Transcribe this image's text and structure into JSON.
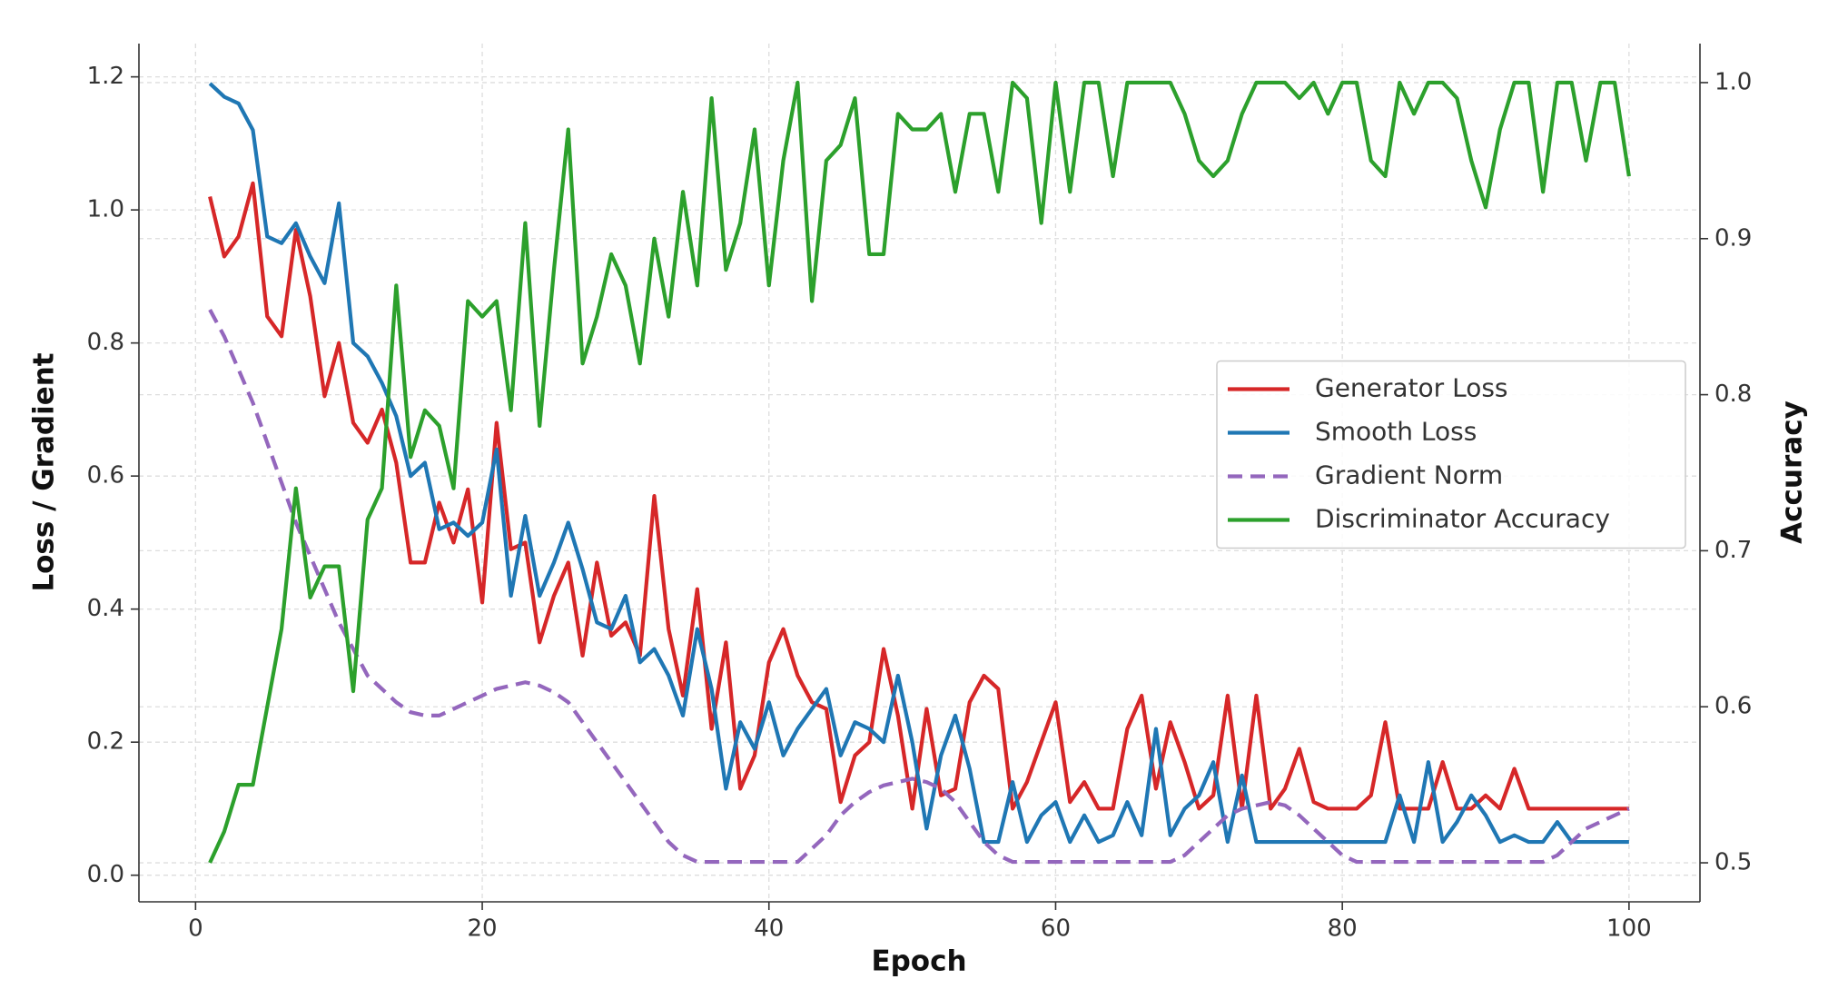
{
  "chart_data": {
    "type": "line",
    "xlabel": "Epoch",
    "ylabel": "Loss / Gradient",
    "y2label": "Accuracy",
    "x": [
      1,
      2,
      3,
      4,
      5,
      6,
      7,
      8,
      9,
      10,
      11,
      12,
      13,
      14,
      15,
      16,
      17,
      18,
      19,
      20,
      21,
      22,
      23,
      24,
      25,
      26,
      27,
      28,
      29,
      30,
      31,
      32,
      33,
      34,
      35,
      36,
      37,
      38,
      39,
      40,
      41,
      42,
      43,
      44,
      45,
      46,
      47,
      48,
      49,
      50,
      51,
      52,
      53,
      54,
      55,
      56,
      57,
      58,
      59,
      60,
      61,
      62,
      63,
      64,
      65,
      66,
      67,
      68,
      69,
      70,
      71,
      72,
      73,
      74,
      75,
      76,
      77,
      78,
      79,
      80,
      81,
      82,
      83,
      84,
      85,
      86,
      87,
      88,
      89,
      90,
      91,
      92,
      93,
      94,
      95,
      96,
      97,
      98,
      99,
      100
    ],
    "series": [
      {
        "name": "Generator Loss",
        "color": "#d62728",
        "linestyle": "solid",
        "axis": "y",
        "values": [
          1.02,
          0.93,
          0.96,
          1.04,
          0.84,
          0.81,
          0.97,
          0.87,
          0.72,
          0.8,
          0.68,
          0.65,
          0.7,
          0.62,
          0.47,
          0.47,
          0.56,
          0.5,
          0.58,
          0.41,
          0.68,
          0.49,
          0.5,
          0.35,
          0.42,
          0.47,
          0.33,
          0.47,
          0.36,
          0.38,
          0.33,
          0.57,
          0.37,
          0.27,
          0.43,
          0.22,
          0.35,
          0.13,
          0.18,
          0.32,
          0.37,
          0.3,
          0.26,
          0.25,
          0.11,
          0.18,
          0.2,
          0.34,
          0.24,
          0.1,
          0.25,
          0.12,
          0.13,
          0.26,
          0.3,
          0.28,
          0.1,
          0.14,
          0.2,
          0.26,
          0.11,
          0.14,
          0.1,
          0.1,
          0.22,
          0.27,
          0.13,
          0.23,
          0.17,
          0.1,
          0.12,
          0.27,
          0.1,
          0.27,
          0.1,
          0.13,
          0.19,
          0.11,
          0.1,
          0.1,
          0.1,
          0.12,
          0.23,
          0.1,
          0.1,
          0.1,
          0.17,
          0.1,
          0.1,
          0.12,
          0.1,
          0.16,
          0.1,
          0.1,
          0.1,
          0.1,
          0.1,
          0.1,
          0.1,
          0.1
        ]
      },
      {
        "name": "Smooth Loss",
        "color": "#1f77b4",
        "linestyle": "solid",
        "axis": "y",
        "values": [
          1.19,
          1.17,
          1.16,
          1.12,
          0.96,
          0.95,
          0.98,
          0.93,
          0.89,
          1.01,
          0.8,
          0.78,
          0.74,
          0.69,
          0.6,
          0.62,
          0.52,
          0.53,
          0.51,
          0.53,
          0.64,
          0.42,
          0.54,
          0.42,
          0.47,
          0.53,
          0.46,
          0.38,
          0.37,
          0.42,
          0.32,
          0.34,
          0.3,
          0.24,
          0.37,
          0.28,
          0.13,
          0.23,
          0.19,
          0.26,
          0.18,
          0.22,
          0.25,
          0.28,
          0.18,
          0.23,
          0.22,
          0.2,
          0.3,
          0.2,
          0.07,
          0.18,
          0.24,
          0.16,
          0.05,
          0.05,
          0.14,
          0.05,
          0.09,
          0.11,
          0.05,
          0.09,
          0.05,
          0.06,
          0.11,
          0.06,
          0.22,
          0.06,
          0.1,
          0.12,
          0.17,
          0.05,
          0.15,
          0.05,
          0.05,
          0.05,
          0.05,
          0.05,
          0.05,
          0.05,
          0.05,
          0.05,
          0.05,
          0.12,
          0.05,
          0.17,
          0.05,
          0.08,
          0.12,
          0.09,
          0.05,
          0.06,
          0.05,
          0.05,
          0.08,
          0.05,
          0.05,
          0.05,
          0.05,
          0.05
        ]
      },
      {
        "name": "Gradient Norm",
        "color": "#9467bd",
        "linestyle": "dashed",
        "axis": "y",
        "values": [
          0.85,
          0.81,
          0.76,
          0.71,
          0.65,
          0.59,
          0.53,
          0.48,
          0.43,
          0.38,
          0.34,
          0.3,
          0.28,
          0.26,
          0.245,
          0.24,
          0.24,
          0.25,
          0.26,
          0.27,
          0.28,
          0.285,
          0.29,
          0.285,
          0.275,
          0.26,
          0.23,
          0.2,
          0.17,
          0.14,
          0.11,
          0.08,
          0.05,
          0.03,
          0.02,
          0.02,
          0.02,
          0.02,
          0.02,
          0.02,
          0.02,
          0.02,
          0.04,
          0.06,
          0.09,
          0.11,
          0.125,
          0.135,
          0.14,
          0.145,
          0.14,
          0.13,
          0.11,
          0.08,
          0.05,
          0.03,
          0.02,
          0.02,
          0.02,
          0.02,
          0.02,
          0.02,
          0.02,
          0.02,
          0.02,
          0.02,
          0.02,
          0.02,
          0.03,
          0.05,
          0.07,
          0.09,
          0.1,
          0.105,
          0.11,
          0.105,
          0.09,
          0.07,
          0.05,
          0.03,
          0.02,
          0.02,
          0.02,
          0.02,
          0.02,
          0.02,
          0.02,
          0.02,
          0.02,
          0.02,
          0.02,
          0.02,
          0.02,
          0.02,
          0.03,
          0.05,
          0.07,
          0.08,
          0.09,
          0.1
        ]
      },
      {
        "name": "Discriminator Accuracy",
        "color": "#2ca02c",
        "linestyle": "solid",
        "axis": "y2",
        "values": [
          0.5,
          0.52,
          0.55,
          0.55,
          0.6,
          0.65,
          0.74,
          0.67,
          0.69,
          0.69,
          0.61,
          0.72,
          0.74,
          0.87,
          0.76,
          0.79,
          0.78,
          0.74,
          0.86,
          0.85,
          0.86,
          0.79,
          0.91,
          0.78,
          0.88,
          0.97,
          0.82,
          0.85,
          0.89,
          0.87,
          0.82,
          0.9,
          0.85,
          0.93,
          0.87,
          0.99,
          0.88,
          0.91,
          0.97,
          0.87,
          0.95,
          1.0,
          0.86,
          0.95,
          0.96,
          0.99,
          0.89,
          0.89,
          0.98,
          0.97,
          0.97,
          0.98,
          0.93,
          0.98,
          0.98,
          0.93,
          1.0,
          0.99,
          0.91,
          1.0,
          0.93,
          1.0,
          1.0,
          0.94,
          1.0,
          1.0,
          1.0,
          1.0,
          0.98,
          0.95,
          0.94,
          0.95,
          0.98,
          1.0,
          1.0,
          1.0,
          0.99,
          1.0,
          0.98,
          1.0,
          1.0,
          0.95,
          0.94,
          1.0,
          0.98,
          1.0,
          1.0,
          0.99,
          0.95,
          0.92,
          0.97,
          1.0,
          1.0,
          0.93,
          1.0,
          1.0,
          0.95,
          1.0,
          1.0,
          0.94
        ]
      }
    ],
    "xlim": [
      -3.95,
      104.95
    ],
    "xticks": [
      0,
      20,
      40,
      60,
      80,
      100
    ],
    "ylim": [
      -0.04,
      1.25
    ],
    "yticks": [
      {
        "value": 0,
        "label": "0.0"
      },
      0.2,
      0.4,
      0.6,
      0.8,
      {
        "value": 1,
        "label": "1.0"
      },
      1.2
    ],
    "y2lim": [
      0.475,
      1.025
    ],
    "y2ticks": [
      0.5,
      0.6,
      0.7,
      0.8,
      0.9,
      {
        "value": 1,
        "label": "1.0"
      }
    ],
    "grid": true,
    "legend": "center right"
  }
}
